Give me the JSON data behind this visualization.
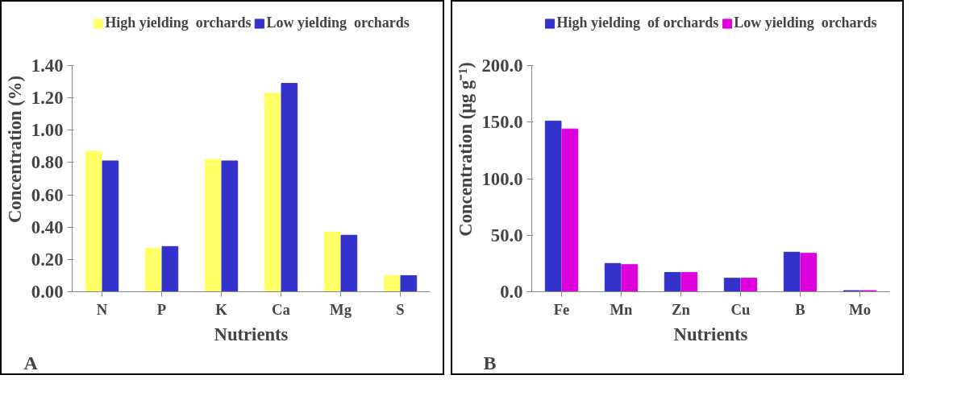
{
  "chart_data": [
    {
      "type": "bar",
      "xlabel": "Nutrients",
      "ylabel": "Concentration (%)",
      "categories": [
        "N",
        "P",
        "K",
        "Ca",
        "Mg",
        "S"
      ],
      "series": [
        {
          "name": "High yielding  orchards",
          "color": "#ffff66",
          "values": [
            0.87,
            0.27,
            0.82,
            1.23,
            0.37,
            0.1
          ]
        },
        {
          "name": "Low yielding  orchards",
          "color": "#3333cc",
          "values": [
            0.81,
            0.28,
            0.81,
            1.29,
            0.35,
            0.1
          ]
        }
      ],
      "ylim": [
        0,
        1.4
      ],
      "yticks": [
        {
          "value": 0,
          "label": "0.00"
        },
        {
          "value": 0.2,
          "label": "0.20"
        },
        {
          "value": 0.4,
          "label": "0.40"
        },
        {
          "value": 0.6,
          "label": "0.60"
        },
        {
          "value": 0.8,
          "label": "0.80"
        },
        {
          "value": 1.0,
          "label": "1.00"
        },
        {
          "value": 1.2,
          "label": "1.20"
        },
        {
          "value": 1.4,
          "label": "1.40"
        }
      ],
      "grid": false,
      "legend": "top",
      "annotations": [
        "A"
      ]
    },
    {
      "type": "bar",
      "xlabel": "Nutrients",
      "ylabel": "Concentration (μg g⁻¹)",
      "categories": [
        "Fe",
        "Mn",
        "Zn",
        "Cu",
        "B",
        "Mo"
      ],
      "series": [
        {
          "name": "High yielding  of orchards",
          "color": "#3333cc",
          "values": [
            151,
            25,
            17,
            12,
            35,
            1
          ]
        },
        {
          "name": "Low yielding  orchards",
          "color": "#dd00dd",
          "values": [
            144,
            24,
            17,
            12,
            34,
            1
          ]
        }
      ],
      "ylim": [
        0,
        200
      ],
      "yticks": [
        {
          "value": 0,
          "label": "0.0"
        },
        {
          "value": 50,
          "label": "50.0"
        },
        {
          "value": 100,
          "label": "100.0"
        },
        {
          "value": 150,
          "label": "150.0"
        },
        {
          "value": 200,
          "label": "200.0"
        }
      ],
      "grid": false,
      "legend": "top",
      "annotations": [
        "B"
      ]
    }
  ]
}
